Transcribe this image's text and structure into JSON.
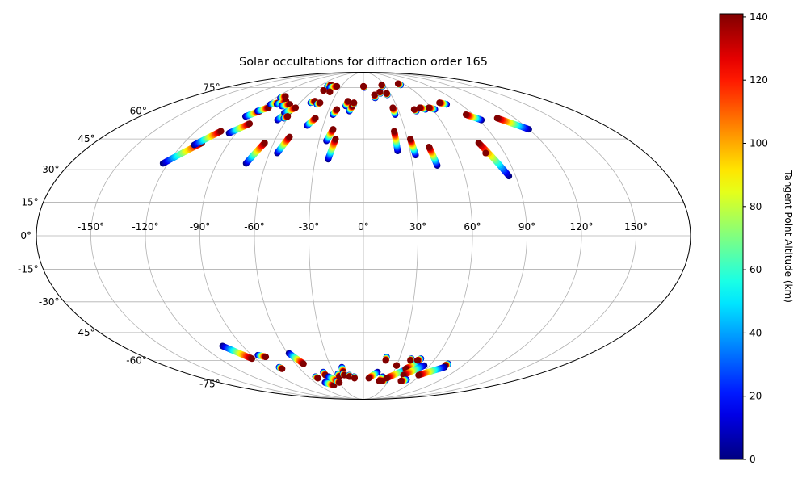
{
  "chart_data": {
    "type": "scatter",
    "projection": "mollweide",
    "title": "Solar occultations for diffraction order 165",
    "lon_ticks": [
      "-150°",
      "-120°",
      "-90°",
      "-60°",
      "-30°",
      "0°",
      "30°",
      "60°",
      "90°",
      "120°",
      "150°"
    ],
    "lon_tick_values": [
      -150,
      -120,
      -90,
      -60,
      -30,
      0,
      30,
      60,
      90,
      120,
      150
    ],
    "lat_ticks": [
      "-75°",
      "-60°",
      "-45°",
      "-30°",
      "-15°",
      "0°",
      "15°",
      "30°",
      "45°",
      "60°",
      "75°"
    ],
    "lat_tick_values": [
      -75,
      -60,
      -45,
      -30,
      -15,
      0,
      15,
      30,
      45,
      60,
      75
    ],
    "grid": true,
    "colorbar": {
      "label": "Tangent Point Altitude (km)",
      "ticks": [
        "0",
        "20",
        "40",
        "60",
        "80",
        "100",
        "120",
        "140"
      ],
      "tick_values": [
        0,
        20,
        40,
        60,
        80,
        100,
        120,
        140
      ],
      "range": [
        0,
        141
      ],
      "colormap": "jet"
    },
    "tracks": [
      {
        "lon0": -123,
        "lat0": 33,
        "lon1": -108,
        "lat1": 43
      },
      {
        "lon0": -112,
        "lat0": 42,
        "lon1": -102,
        "lat1": 49
      },
      {
        "lon0": -95,
        "lat0": 48,
        "lon1": -86,
        "lat1": 53
      },
      {
        "lon0": -95,
        "lat0": 57,
        "lon1": -88,
        "lat1": 60
      },
      {
        "lon0": -90,
        "lat0": 60,
        "lon1": -84,
        "lat1": 62
      },
      {
        "lon0": -86,
        "lat0": 64,
        "lon1": -80,
        "lat1": 65
      },
      {
        "lon0": -85,
        "lat0": 68,
        "lon1": -82,
        "lat1": 69
      },
      {
        "lon0": -80,
        "lat0": 64,
        "lon1": -75,
        "lat1": 66
      },
      {
        "lon0": -74,
        "lat0": 63,
        "lon1": -68,
        "lat1": 64
      },
      {
        "lon0": -72,
        "lat0": 33,
        "lon1": -66,
        "lat1": 43
      },
      {
        "lon0": -67,
        "lat0": 55,
        "lon1": -63,
        "lat1": 60
      },
      {
        "lon0": -66,
        "lat0": 59,
        "lon1": -60,
        "lat1": 62
      },
      {
        "lon0": -63,
        "lat0": 56,
        "lon1": -61,
        "lat1": 57
      },
      {
        "lon0": -55,
        "lat0": 38,
        "lon1": -51,
        "lat1": 46
      },
      {
        "lon0": -50,
        "lat0": 65,
        "lon1": -47,
        "lat1": 66
      },
      {
        "lon0": -43,
        "lat0": 64,
        "lon1": -41,
        "lat1": 65
      },
      {
        "lon0": -49,
        "lat0": 76,
        "lon1": -46,
        "lat1": 77
      },
      {
        "lon0": -48,
        "lat0": 73,
        "lon1": -48,
        "lat1": 73
      },
      {
        "lon0": -42,
        "lat0": 52,
        "lon1": -38,
        "lat1": 56
      },
      {
        "lon0": -44,
        "lat0": 75,
        "lon1": -36,
        "lat1": 76
      },
      {
        "lon0": -39,
        "lat0": 72,
        "lon1": -39,
        "lat1": 72
      },
      {
        "lon0": -22,
        "lat0": 35,
        "lon1": -19,
        "lat1": 45
      },
      {
        "lon0": -25,
        "lat0": 44,
        "lon1": -22,
        "lat1": 50
      },
      {
        "lon0": -25,
        "lat0": 58,
        "lon1": -23,
        "lat1": 61
      },
      {
        "lon0": -16,
        "lat0": 63,
        "lon1": -15,
        "lat1": 66
      },
      {
        "lon0": -12,
        "lat0": 60,
        "lon1": -10,
        "lat1": 63
      },
      {
        "lon0": -9,
        "lat0": 64,
        "lon1": -9,
        "lat1": 65
      },
      {
        "lon0": 1,
        "lat0": 75,
        "lon1": 0,
        "lat1": 76
      },
      {
        "lon0": 12,
        "lat0": 68,
        "lon1": 12,
        "lat1": 70
      },
      {
        "lon0": 22,
        "lat0": 39,
        "lon1": 22,
        "lat1": 49
      },
      {
        "lon0": 19,
        "lat0": 71,
        "lon1": 19,
        "lat1": 72
      },
      {
        "lon0": 26,
        "lat0": 58,
        "lon1": 26,
        "lat1": 62
      },
      {
        "lon0": 26,
        "lat0": 70,
        "lon1": 26,
        "lat1": 71
      },
      {
        "lon0": 26,
        "lat0": 76,
        "lon1": 26,
        "lat1": 77
      },
      {
        "lon0": 33,
        "lat0": 37,
        "lon1": 32,
        "lat1": 45
      },
      {
        "lon0": 45,
        "lat0": 32,
        "lon1": 43,
        "lat1": 41
      },
      {
        "lon0": 45,
        "lat0": 60,
        "lon1": 44,
        "lat1": 61
      },
      {
        "lon0": 54,
        "lat0": 61,
        "lon1": 50,
        "lat1": 62
      },
      {
        "lon0": 53,
        "lat0": 77,
        "lon1": 52,
        "lat1": 78
      },
      {
        "lon0": 62,
        "lat0": 61,
        "lon1": 58,
        "lat1": 62
      },
      {
        "lon0": 77,
        "lat0": 64,
        "lon1": 72,
        "lat1": 65
      },
      {
        "lon0": 86,
        "lat0": 27,
        "lon1": 77,
        "lat1": 43
      },
      {
        "lon0": 78,
        "lat0": 38,
        "lon1": 78,
        "lat1": 38
      },
      {
        "lon0": 92,
        "lat0": 55,
        "lon1": 84,
        "lat1": 58
      },
      {
        "lon0": 120,
        "lat0": 50,
        "lon1": 106,
        "lat1": 56
      },
      {
        "lon0": -105,
        "lat0": -52,
        "lon1": -93,
        "lat1": -59
      },
      {
        "lon0": -85,
        "lat0": -57,
        "lon1": -80,
        "lat1": -58
      },
      {
        "lon0": -78,
        "lat0": -64,
        "lon1": -77,
        "lat1": -65
      },
      {
        "lon0": -59,
        "lat0": -56,
        "lon1": -53,
        "lat1": -62
      },
      {
        "lon0": -52,
        "lat0": -70,
        "lon1": -51,
        "lat1": -71
      },
      {
        "lon0": -48,
        "lat0": -74,
        "lon1": -40,
        "lat1": -76
      },
      {
        "lon0": -40,
        "lat0": -67,
        "lon1": -40,
        "lat1": -69
      },
      {
        "lon0": -38,
        "lat0": -70,
        "lon1": -31,
        "lat1": -73
      },
      {
        "lon0": -32,
        "lat0": -73,
        "lon1": -30,
        "lat1": -74
      },
      {
        "lon0": -26,
        "lat0": -68,
        "lon1": -26,
        "lat1": -70
      },
      {
        "lon0": -20,
        "lat0": -64,
        "lon1": -20,
        "lat1": -67
      },
      {
        "lon0": -21,
        "lat0": -68,
        "lon1": -20,
        "lat1": -69
      },
      {
        "lon0": -15,
        "lat0": -69,
        "lon1": -15,
        "lat1": -70
      },
      {
        "lon0": -10,
        "lat0": -70,
        "lon1": -10,
        "lat1": -71
      },
      {
        "lon0": 14,
        "lat0": -67,
        "lon1": 6,
        "lat1": -71
      },
      {
        "lon0": 19,
        "lat0": -58,
        "lon1": 19,
        "lat1": -60
      },
      {
        "lon0": 21,
        "lat0": -70,
        "lon1": 19,
        "lat1": -73
      },
      {
        "lon0": 26,
        "lat0": -72,
        "lon1": 22,
        "lat1": -73
      },
      {
        "lon0": 30,
        "lat0": -63,
        "lon1": 30,
        "lat1": -63
      },
      {
        "lon0": 42,
        "lat0": -65,
        "lon1": 26,
        "lat1": -71
      },
      {
        "lon0": 48,
        "lat0": -61,
        "lon1": 40,
        "lat1": -65
      },
      {
        "lon0": 40,
        "lat0": -59,
        "lon1": 40,
        "lat1": -60
      },
      {
        "lon0": 48,
        "lat0": -59,
        "lon1": 46,
        "lat1": -60
      },
      {
        "lon0": 55,
        "lat0": -63,
        "lon1": 42,
        "lat1": -69
      },
      {
        "lon0": 50,
        "lat0": -72,
        "lon1": 45,
        "lat1": -73
      },
      {
        "lon0": 75,
        "lat0": -62,
        "lon1": 74,
        "lat1": -63
      },
      {
        "lon0": 75,
        "lat0": -64,
        "lon1": 58,
        "lat1": -69
      }
    ]
  }
}
